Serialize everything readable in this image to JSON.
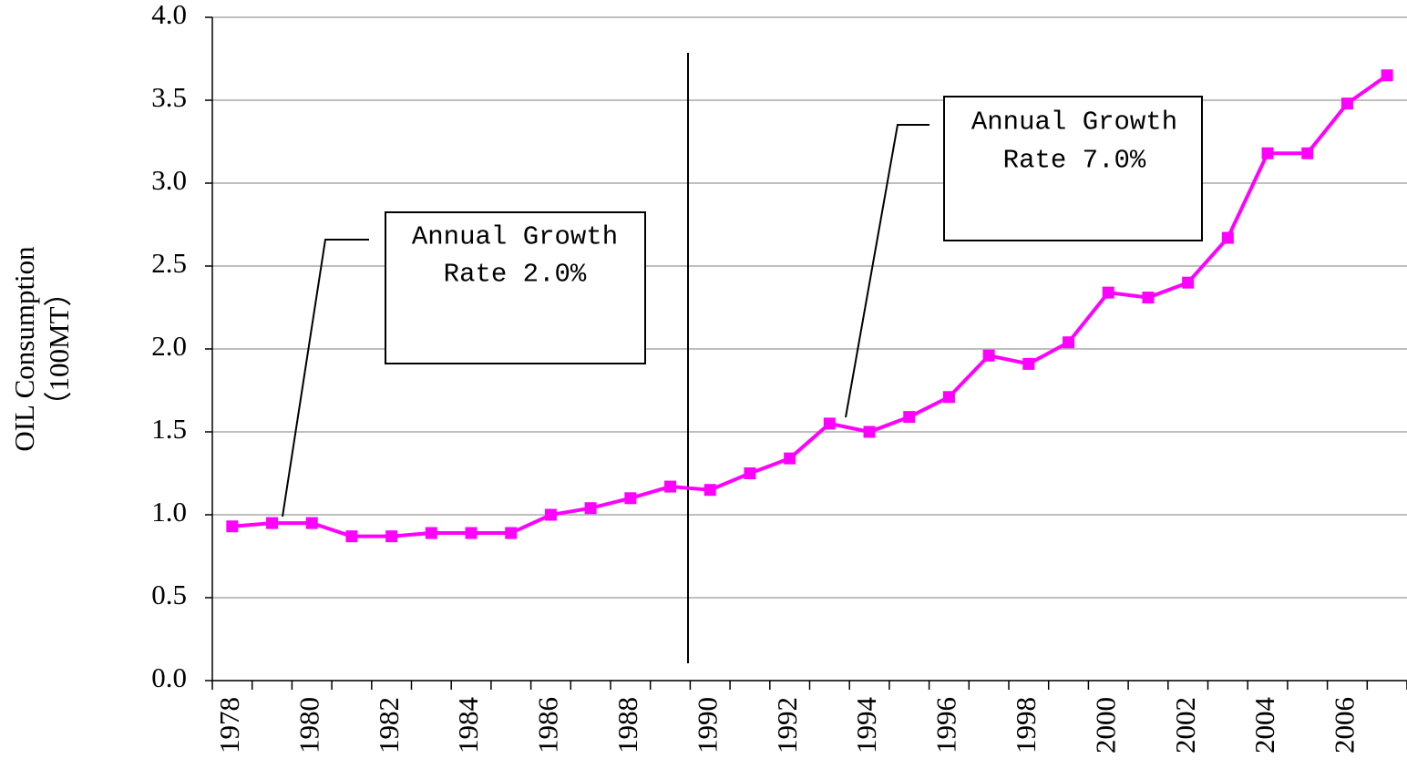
{
  "chart_data": {
    "type": "line",
    "ylabel": [
      "OIL Consumption",
      "（100MT）"
    ],
    "categories": [
      "1978",
      null,
      "1980",
      null,
      "1982",
      null,
      "1984",
      null,
      "1986",
      null,
      "1988",
      null,
      "1990",
      null,
      "1992",
      null,
      "1994",
      null,
      "1996",
      null,
      "1998",
      null,
      "2000",
      null,
      "2002",
      null,
      "2004",
      null,
      "2006",
      null
    ],
    "series": [
      {
        "color": "#ff00ff",
        "values": [
          0.93,
          0.95,
          0.95,
          0.87,
          0.87,
          0.89,
          0.89,
          0.89,
          1.0,
          1.04,
          1.1,
          1.17,
          1.15,
          1.25,
          1.34,
          1.55,
          1.5,
          1.59,
          1.71,
          1.96,
          1.91,
          2.04,
          2.34,
          2.31,
          2.4,
          2.67,
          3.18,
          3.18,
          3.48,
          3.65
        ]
      }
    ],
    "ylim": [
      0,
      4
    ],
    "yticks": [
      {
        "value": 0,
        "label": "0.0"
      },
      0.5,
      {
        "value": 1,
        "label": "1.0"
      },
      1.5,
      {
        "value": 2,
        "label": "2.0"
      },
      2.5,
      {
        "value": 3,
        "label": "3.0"
      },
      3.5,
      {
        "value": 4,
        "label": "4.0"
      }
    ],
    "grid": true,
    "annotations": [
      {
        "lines": [
          "Annual Growth",
          "Rate 2.0%"
        ]
      },
      {
        "lines": [
          "Annual Growth",
          "Rate 7.0%"
        ]
      }
    ]
  }
}
